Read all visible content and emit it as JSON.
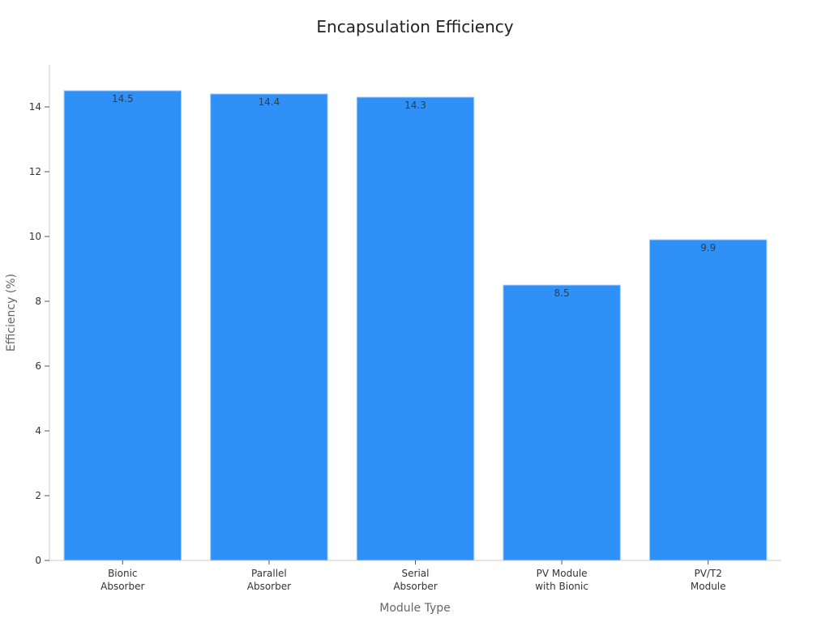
{
  "chart_data": {
    "type": "bar",
    "title": "Encapsulation Efficiency",
    "xlabel": "Module Type",
    "ylabel": "Efficiency (%)",
    "categories": [
      [
        "Bionic",
        "Absorber"
      ],
      [
        "Parallel",
        "Absorber"
      ],
      [
        "Serial",
        "Absorber"
      ],
      [
        "PV Module",
        "with Bionic"
      ],
      [
        "PV/T2",
        "Module"
      ]
    ],
    "values": [
      14.5,
      14.4,
      14.3,
      8.5,
      9.9
    ],
    "value_labels": [
      "14.5",
      "14.4",
      "14.3",
      "8.5",
      "9.9"
    ],
    "ylim": [
      0,
      15.3
    ],
    "yticks": [
      0,
      2,
      4,
      6,
      8,
      10,
      12,
      14
    ],
    "grid": false,
    "bar_color": "#2f91f7"
  }
}
